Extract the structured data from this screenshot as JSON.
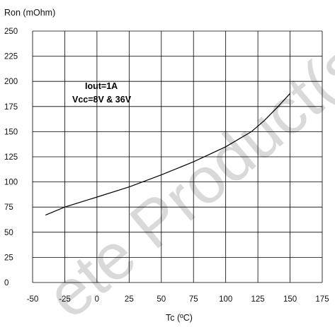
{
  "chart_data": {
    "type": "line",
    "ylabel": "Ron (mOhm)",
    "xlabel": "Tc (ºC)",
    "xlim": [
      -50,
      175
    ],
    "ylim": [
      0,
      250
    ],
    "xticks": [
      -50,
      -25,
      0,
      25,
      50,
      75,
      100,
      125,
      150,
      175
    ],
    "yticks": [
      0,
      25,
      50,
      75,
      100,
      125,
      150,
      175,
      200,
      225,
      250
    ],
    "grid": true,
    "annotations": [
      "Iout=1A",
      "Vcc=8V & 36V"
    ],
    "series": [
      {
        "x": [
          -40,
          -25,
          0,
          25,
          50,
          75,
          100,
          120,
          130,
          140,
          150
        ],
        "y": [
          67,
          75,
          85,
          95,
          107,
          120,
          135,
          150,
          161,
          174,
          188
        ]
      }
    ]
  },
  "watermark": "ete Product(s)",
  "colors": {
    "line": "#000000",
    "grid": "#000000",
    "watermark": "#d9d9d9"
  }
}
